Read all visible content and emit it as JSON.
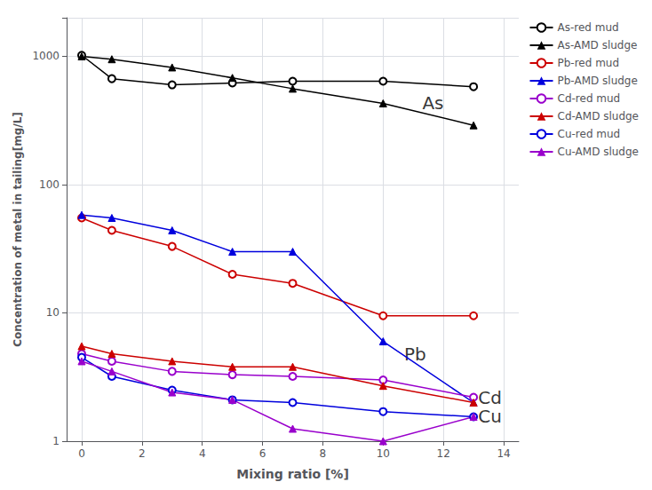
{
  "chart_data": {
    "type": "line",
    "xlabel": "Mixing ratio [%]",
    "ylabel": "Concentration of metal in tailing[mg/L]",
    "x": [
      0,
      1,
      3,
      5,
      7,
      10,
      13
    ],
    "series": [
      {
        "name": "As-red mud",
        "color": "#000000",
        "marker": "emptyCircle",
        "values": [
          1020,
          670,
          600,
          620,
          640,
          640,
          580
        ]
      },
      {
        "name": "As-AMD sludge",
        "color": "#000000",
        "marker": "triangle",
        "values": [
          1000,
          950,
          820,
          680,
          560,
          430,
          290
        ]
      },
      {
        "name": "Pb-red mud",
        "color": "#cc0000",
        "marker": "emptyCircle",
        "values": [
          55,
          44,
          33,
          20,
          17,
          9.5,
          9.5
        ]
      },
      {
        "name": "Pb-AMD sludge",
        "color": "#0000dd",
        "marker": "triangle",
        "values": [
          58,
          55,
          44,
          30,
          30,
          6.0,
          2.0
        ]
      },
      {
        "name": "Cd-red mud",
        "color": "#9900cc",
        "marker": "emptyCircle",
        "values": [
          4.8,
          4.2,
          3.5,
          3.3,
          3.2,
          3.0,
          2.2
        ]
      },
      {
        "name": "Cd-AMD sludge",
        "color": "#cc0000",
        "marker": "triangle",
        "values": [
          5.5,
          4.8,
          4.2,
          3.8,
          3.8,
          2.7,
          2.0
        ]
      },
      {
        "name": "Cu-red mud",
        "color": "#0000dd",
        "marker": "emptyCircle",
        "values": [
          4.5,
          3.2,
          2.5,
          2.1,
          2.0,
          1.7,
          1.55
        ]
      },
      {
        "name": "Cu-AMD sludge",
        "color": "#9900cc",
        "marker": "triangle",
        "values": [
          4.2,
          3.5,
          2.4,
          2.1,
          1.25,
          1.0,
          1.55
        ]
      }
    ],
    "annotations": [
      {
        "text": "As",
        "x": 11.3,
        "y": 430
      },
      {
        "text": "Pb",
        "x": 10.7,
        "y": 4.8
      },
      {
        "text": "Cd",
        "x": 13.15,
        "y": 2.2
      },
      {
        "text": "Cu",
        "x": 13.15,
        "y": 1.55
      }
    ],
    "xlim": [
      -0.5,
      14.5
    ],
    "xticks": [
      0,
      2,
      4,
      6,
      8,
      10,
      12,
      14
    ],
    "ylim": [
      1,
      2000
    ],
    "yticks": [
      1,
      10,
      100,
      1000
    ],
    "log": "y",
    "grid": true,
    "legend": "upper right"
  }
}
